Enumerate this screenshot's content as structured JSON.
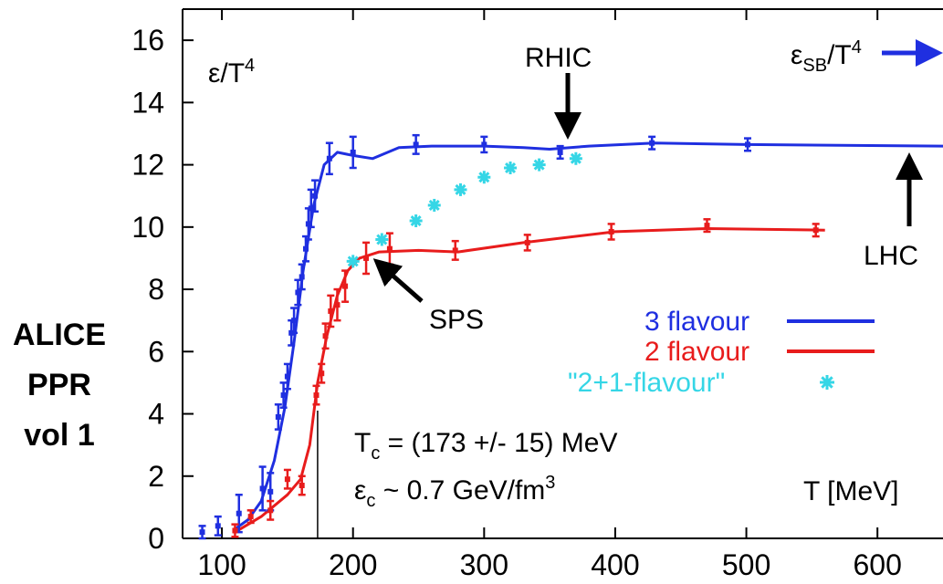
{
  "side_label": {
    "line1": "ALICE",
    "line2": "PPR",
    "line3": "vol 1"
  },
  "chart_data": {
    "type": "line",
    "title": "",
    "xlabel": "T [MeV]",
    "ylabel": "ε/T⁴",
    "xlim": [
      70,
      650
    ],
    "ylim": [
      0,
      17
    ],
    "xticks": [
      "100",
      "200",
      "300",
      "400",
      "500",
      "600"
    ],
    "yticks": [
      "0",
      "2",
      "4",
      "6",
      "8",
      "10",
      "12",
      "14",
      "16"
    ],
    "grid": false,
    "legend_position": "center-right",
    "series": [
      {
        "name": "3 flavour",
        "color": "#1f2fe0",
        "curve": [
          [
            110,
            0.3
          ],
          [
            120,
            0.6
          ],
          [
            130,
            1.2
          ],
          [
            140,
            2.5
          ],
          [
            148,
            4.2
          ],
          [
            155,
            6.3
          ],
          [
            162,
            8.6
          ],
          [
            170,
            10.7
          ],
          [
            178,
            12.0
          ],
          [
            188,
            12.4
          ],
          [
            200,
            12.3
          ],
          [
            215,
            12.2
          ],
          [
            235,
            12.55
          ],
          [
            260,
            12.6
          ],
          [
            300,
            12.6
          ],
          [
            330,
            12.55
          ],
          [
            350,
            12.5
          ],
          [
            380,
            12.6
          ],
          [
            430,
            12.7
          ],
          [
            500,
            12.65
          ],
          [
            650,
            12.6
          ]
        ],
        "points": [
          {
            "x": 85,
            "y": 0.2,
            "err": 0.2
          },
          {
            "x": 97,
            "y": 0.4,
            "err": 0.3
          },
          {
            "x": 113,
            "y": 0.8,
            "err": 0.6
          },
          {
            "x": 131,
            "y": 1.6,
            "err": 0.7
          },
          {
            "x": 137,
            "y": 1.5,
            "err": 0.6
          },
          {
            "x": 143,
            "y": 3.9,
            "err": 0.4
          },
          {
            "x": 147,
            "y": 4.6,
            "err": 0.4
          },
          {
            "x": 150,
            "y": 5.2,
            "err": 0.4
          },
          {
            "x": 153,
            "y": 6.6,
            "err": 0.4
          },
          {
            "x": 155,
            "y": 7.0,
            "err": 0.4
          },
          {
            "x": 158,
            "y": 7.9,
            "err": 0.4
          },
          {
            "x": 161,
            "y": 8.4,
            "err": 0.4
          },
          {
            "x": 164,
            "y": 9.3,
            "err": 0.4
          },
          {
            "x": 166,
            "y": 10.1,
            "err": 0.5
          },
          {
            "x": 168,
            "y": 10.6,
            "err": 0.6
          },
          {
            "x": 171,
            "y": 11.0,
            "err": 0.5
          },
          {
            "x": 182,
            "y": 12.2,
            "err": 0.5
          },
          {
            "x": 200,
            "y": 12.4,
            "err": 0.5
          },
          {
            "x": 248,
            "y": 12.65,
            "err": 0.3
          },
          {
            "x": 300,
            "y": 12.65,
            "err": 0.25
          },
          {
            "x": 358,
            "y": 12.4,
            "err": 0.2
          },
          {
            "x": 428,
            "y": 12.7,
            "err": 0.2
          },
          {
            "x": 501,
            "y": 12.65,
            "err": 0.2
          }
        ]
      },
      {
        "name": "2 flavour",
        "color": "#e81c1c",
        "curve": [
          [
            110,
            0.2
          ],
          [
            130,
            0.7
          ],
          [
            150,
            1.4
          ],
          [
            160,
            1.9
          ],
          [
            167,
            3.0
          ],
          [
            173,
            5.0
          ],
          [
            180,
            6.5
          ],
          [
            188,
            7.8
          ],
          [
            196,
            8.6
          ],
          [
            205,
            9.0
          ],
          [
            220,
            9.2
          ],
          [
            250,
            9.25
          ],
          [
            280,
            9.2
          ],
          [
            330,
            9.5
          ],
          [
            400,
            9.85
          ],
          [
            470,
            9.95
          ],
          [
            560,
            9.9
          ]
        ],
        "points": [
          {
            "x": 110,
            "y": 0.25,
            "err": 0.2
          },
          {
            "x": 122,
            "y": 0.7,
            "err": 0.2
          },
          {
            "x": 137,
            "y": 0.9,
            "err": 0.3
          },
          {
            "x": 150,
            "y": 1.9,
            "err": 0.3
          },
          {
            "x": 161,
            "y": 1.7,
            "err": 0.3
          },
          {
            "x": 172,
            "y": 4.6,
            "err": 0.3
          },
          {
            "x": 176,
            "y": 5.3,
            "err": 0.3
          },
          {
            "x": 179,
            "y": 6.5,
            "err": 0.4
          },
          {
            "x": 183,
            "y": 7.3,
            "err": 0.5
          },
          {
            "x": 188,
            "y": 7.5,
            "err": 0.5
          },
          {
            "x": 194,
            "y": 8.1,
            "err": 0.5
          },
          {
            "x": 210,
            "y": 9.0,
            "err": 0.5
          },
          {
            "x": 228,
            "y": 9.3,
            "err": 0.5
          },
          {
            "x": 278,
            "y": 9.25,
            "err": 0.3
          },
          {
            "x": 333,
            "y": 9.5,
            "err": 0.25
          },
          {
            "x": 397,
            "y": 9.85,
            "err": 0.25
          },
          {
            "x": 470,
            "y": 10.05,
            "err": 0.2
          },
          {
            "x": 553,
            "y": 9.9,
            "err": 0.2
          }
        ]
      },
      {
        "name": "\"2+1-flavour\"",
        "color": "#35d6e6",
        "points": [
          {
            "x": 200,
            "y": 8.9
          },
          {
            "x": 222,
            "y": 9.6
          },
          {
            "x": 248,
            "y": 10.2
          },
          {
            "x": 262,
            "y": 10.7
          },
          {
            "x": 282,
            "y": 11.2
          },
          {
            "x": 300,
            "y": 11.6
          },
          {
            "x": 320,
            "y": 11.9
          },
          {
            "x": 342,
            "y": 12.0
          },
          {
            "x": 370,
            "y": 12.2
          }
        ]
      }
    ],
    "annotations": {
      "rhic": "RHIC",
      "lhc": "LHC",
      "sps": "SPS",
      "eps_sb_base": "ε",
      "eps_sb_sub": "SB",
      "eps_sb_rest": "/T",
      "eps_sb_sup": "4",
      "tc_base": "T",
      "tc_sub": "c",
      "tc_rest": " = (173 +/- 15) MeV",
      "ec_base": "ε",
      "ec_sub": "c",
      "ec_rest": " ~ 0.7 GeV/fm",
      "ec_sup": "3",
      "ylabel_base": "ε/T",
      "ylabel_sup": "4"
    },
    "tc_value": 173
  }
}
